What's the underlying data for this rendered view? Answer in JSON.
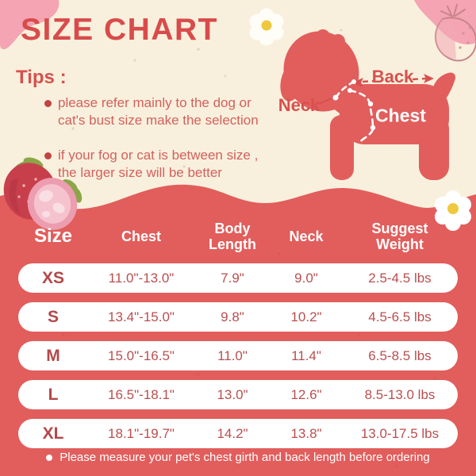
{
  "title": "SIZE CHART",
  "tips": {
    "heading": "Tips :",
    "bullets": [
      "please refer mainly to the dog or cat's bust size make the selection",
      "if your fog or cat is between size , the larger size will be better"
    ]
  },
  "diagram": {
    "back_label": "Back",
    "neck_label": "Neck",
    "chest_label": "Chest"
  },
  "table": {
    "headers": [
      "Size",
      "Chest",
      "Body\nLength",
      "Neck",
      "Suggest\nWeight"
    ],
    "rows": [
      {
        "size": "XS",
        "chest": "11.0\"-13.0\"",
        "body_length": "7.9\"",
        "neck": "9.0\"",
        "weight": "2.5-4.5 lbs"
      },
      {
        "size": "S",
        "chest": "13.4\"-15.0\"",
        "body_length": "9.8\"",
        "neck": "10.2\"",
        "weight": "4.5-6.5 lbs"
      },
      {
        "size": "M",
        "chest": "15.0\"-16.5\"",
        "body_length": "11.0\"",
        "neck": "11.4\"",
        "weight": "6.5-8.5 lbs"
      },
      {
        "size": "L",
        "chest": "16.5\"-18.1\"",
        "body_length": "13.0\"",
        "neck": "12.6\"",
        "weight": "8.5-13.0 lbs"
      },
      {
        "size": "XL",
        "chest": "18.1\"-19.7\"",
        "body_length": "14.2\"",
        "neck": "13.8\"",
        "weight": "13.0-17.5 lbs"
      }
    ]
  },
  "footer": {
    "note": "Please measure your pet's chest girth and back length before ordering"
  },
  "icons": {
    "decorations": [
      "pink-blob",
      "strawberry-icon",
      "strawberry-outline-icon",
      "cut-strawberry-icon",
      "flower-icon",
      "dog-icon"
    ]
  },
  "colors": {
    "background_cream": "#F8F0DD",
    "accent_red": "#E15E5C",
    "title_red": "#D94B4B",
    "tips_text_red": "#D4605D",
    "table_text_red": "#BA4E4E",
    "pink_blob": "#F4A4B2",
    "flower_yellow": "#EEC93F",
    "leaf_green": "#8CA549",
    "row_white": "#FFFFFF"
  }
}
